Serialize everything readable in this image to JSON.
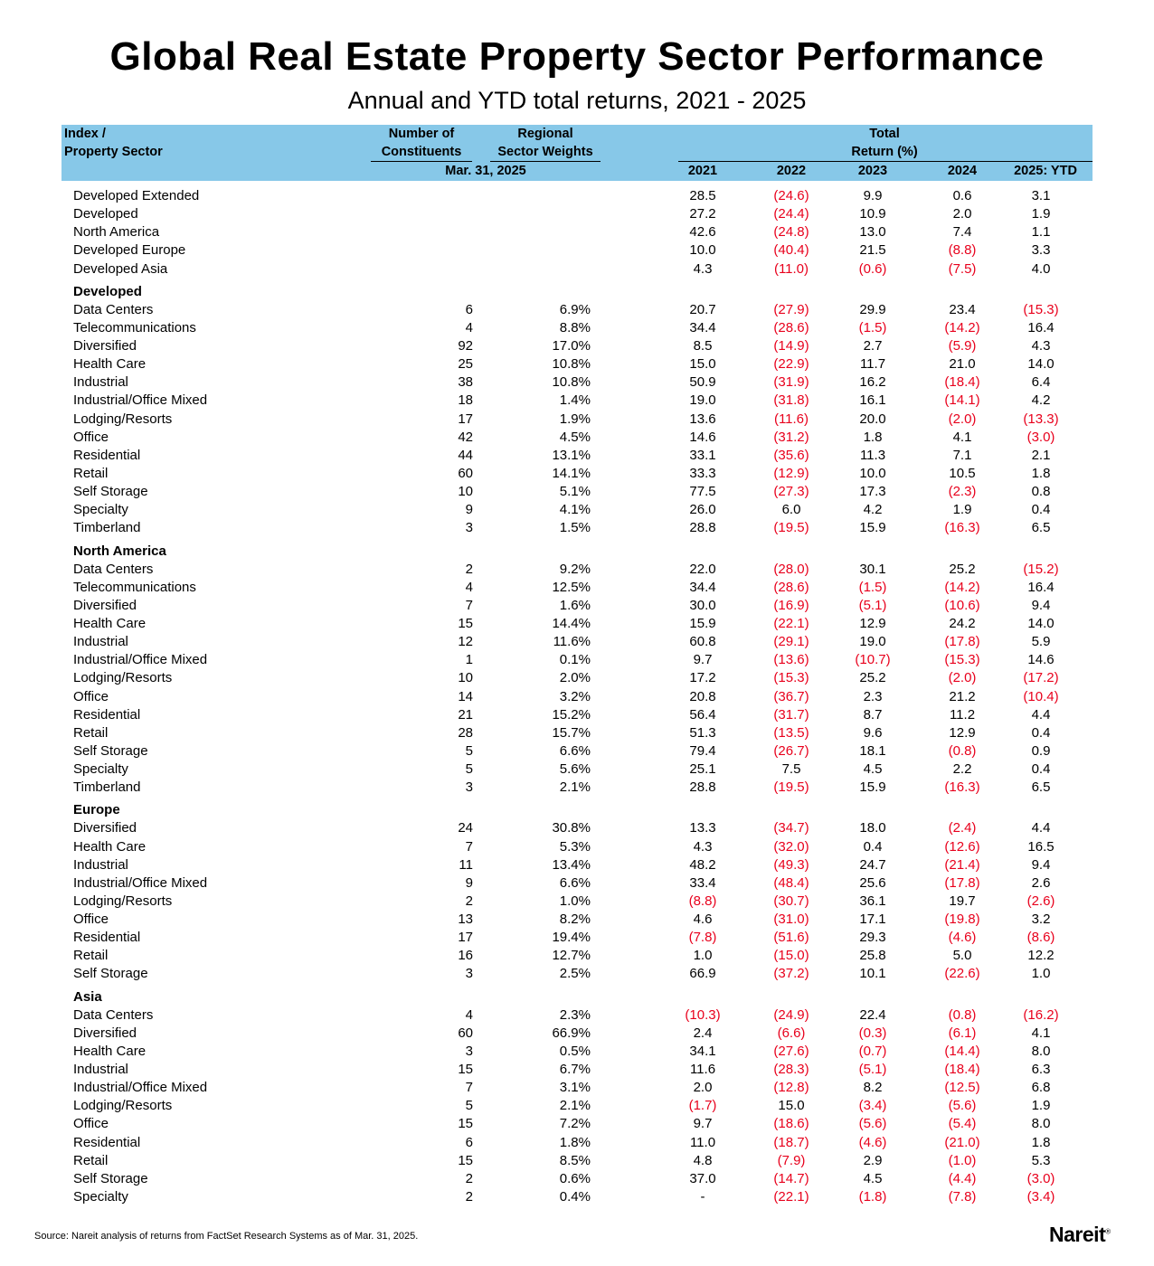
{
  "title": "Global Real Estate Property Sector Performance",
  "subtitle": "Annual and YTD total returns, 2021 - 2025",
  "header": {
    "col1_line1": "Index /",
    "col1_line2": "Property Sector",
    "col2_line1": "Number of",
    "col2_line2": "Constituents",
    "col3_line1": "Regional",
    "col3_line2": "Sector Weights",
    "date": "Mar. 31, 2025",
    "total_line1": "Total",
    "total_line2": "Return (%)",
    "years": [
      "2021",
      "2022",
      "2023",
      "2024",
      "2025: YTD"
    ]
  },
  "groups": [
    {
      "heading": "",
      "rows": [
        [
          "Developed Extended",
          "",
          "",
          "28.5",
          "(24.6)",
          "9.9",
          "0.6",
          "3.1"
        ],
        [
          "Developed",
          "",
          "",
          "27.2",
          "(24.4)",
          "10.9",
          "2.0",
          "1.9"
        ],
        [
          "North America",
          "",
          "",
          "42.6",
          "(24.8)",
          "13.0",
          "7.4",
          "1.1"
        ],
        [
          "Developed Europe",
          "",
          "",
          "10.0",
          "(40.4)",
          "21.5",
          "(8.8)",
          "3.3"
        ],
        [
          "Developed Asia",
          "",
          "",
          "4.3",
          "(11.0)",
          "(0.6)",
          "(7.5)",
          "4.0"
        ]
      ]
    },
    {
      "heading": "Developed",
      "rows": [
        [
          "Data Centers",
          "6",
          "6.9%",
          "20.7",
          "(27.9)",
          "29.9",
          "23.4",
          "(15.3)"
        ],
        [
          "Telecommunications",
          "4",
          "8.8%",
          "34.4",
          "(28.6)",
          "(1.5)",
          "(14.2)",
          "16.4"
        ],
        [
          "Diversified",
          "92",
          "17.0%",
          "8.5",
          "(14.9)",
          "2.7",
          "(5.9)",
          "4.3"
        ],
        [
          "Health Care",
          "25",
          "10.8%",
          "15.0",
          "(22.9)",
          "11.7",
          "21.0",
          "14.0"
        ],
        [
          "Industrial",
          "38",
          "10.8%",
          "50.9",
          "(31.9)",
          "16.2",
          "(18.4)",
          "6.4"
        ],
        [
          "Industrial/Office Mixed",
          "18",
          "1.4%",
          "19.0",
          "(31.8)",
          "16.1",
          "(14.1)",
          "4.2"
        ],
        [
          "Lodging/Resorts",
          "17",
          "1.9%",
          "13.6",
          "(11.6)",
          "20.0",
          "(2.0)",
          "(13.3)"
        ],
        [
          "Office",
          "42",
          "4.5%",
          "14.6",
          "(31.2)",
          "1.8",
          "4.1",
          "(3.0)"
        ],
        [
          "Residential",
          "44",
          "13.1%",
          "33.1",
          "(35.6)",
          "11.3",
          "7.1",
          "2.1"
        ],
        [
          "Retail",
          "60",
          "14.1%",
          "33.3",
          "(12.9)",
          "10.0",
          "10.5",
          "1.8"
        ],
        [
          "Self Storage",
          "10",
          "5.1%",
          "77.5",
          "(27.3)",
          "17.3",
          "(2.3)",
          "0.8"
        ],
        [
          "Specialty",
          "9",
          "4.1%",
          "26.0",
          "6.0",
          "4.2",
          "1.9",
          "0.4"
        ],
        [
          "Timberland",
          "3",
          "1.5%",
          "28.8",
          "(19.5)",
          "15.9",
          "(16.3)",
          "6.5"
        ]
      ]
    },
    {
      "heading": "North America",
      "rows": [
        [
          "Data Centers",
          "2",
          "9.2%",
          "22.0",
          "(28.0)",
          "30.1",
          "25.2",
          "(15.2)"
        ],
        [
          "Telecommunications",
          "4",
          "12.5%",
          "34.4",
          "(28.6)",
          "(1.5)",
          "(14.2)",
          "16.4"
        ],
        [
          "Diversified",
          "7",
          "1.6%",
          "30.0",
          "(16.9)",
          "(5.1)",
          "(10.6)",
          "9.4"
        ],
        [
          "Health Care",
          "15",
          "14.4%",
          "15.9",
          "(22.1)",
          "12.9",
          "24.2",
          "14.0"
        ],
        [
          "Industrial",
          "12",
          "11.6%",
          "60.8",
          "(29.1)",
          "19.0",
          "(17.8)",
          "5.9"
        ],
        [
          "Industrial/Office Mixed",
          "1",
          "0.1%",
          "9.7",
          "(13.6)",
          "(10.7)",
          "(15.3)",
          "14.6"
        ],
        [
          "Lodging/Resorts",
          "10",
          "2.0%",
          "17.2",
          "(15.3)",
          "25.2",
          "(2.0)",
          "(17.2)"
        ],
        [
          "Office",
          "14",
          "3.2%",
          "20.8",
          "(36.7)",
          "2.3",
          "21.2",
          "(10.4)"
        ],
        [
          "Residential",
          "21",
          "15.2%",
          "56.4",
          "(31.7)",
          "8.7",
          "11.2",
          "4.4"
        ],
        [
          "Retail",
          "28",
          "15.7%",
          "51.3",
          "(13.5)",
          "9.6",
          "12.9",
          "0.4"
        ],
        [
          "Self Storage",
          "5",
          "6.6%",
          "79.4",
          "(26.7)",
          "18.1",
          "(0.8)",
          "0.9"
        ],
        [
          "Specialty",
          "5",
          "5.6%",
          "25.1",
          "7.5",
          "4.5",
          "2.2",
          "0.4"
        ],
        [
          "Timberland",
          "3",
          "2.1%",
          "28.8",
          "(19.5)",
          "15.9",
          "(16.3)",
          "6.5"
        ]
      ]
    },
    {
      "heading": "Europe",
      "rows": [
        [
          "Diversified",
          "24",
          "30.8%",
          "13.3",
          "(34.7)",
          "18.0",
          "(2.4)",
          "4.4"
        ],
        [
          "Health Care",
          "7",
          "5.3%",
          "4.3",
          "(32.0)",
          "0.4",
          "(12.6)",
          "16.5"
        ],
        [
          "Industrial",
          "11",
          "13.4%",
          "48.2",
          "(49.3)",
          "24.7",
          "(21.4)",
          "9.4"
        ],
        [
          "Industrial/Office Mixed",
          "9",
          "6.6%",
          "33.4",
          "(48.4)",
          "25.6",
          "(17.8)",
          "2.6"
        ],
        [
          "Lodging/Resorts",
          "2",
          "1.0%",
          "(8.8)",
          "(30.7)",
          "36.1",
          "19.7",
          "(2.6)"
        ],
        [
          "Office",
          "13",
          "8.2%",
          "4.6",
          "(31.0)",
          "17.1",
          "(19.8)",
          "3.2"
        ],
        [
          "Residential",
          "17",
          "19.4%",
          "(7.8)",
          "(51.6)",
          "29.3",
          "(4.6)",
          "(8.6)"
        ],
        [
          "Retail",
          "16",
          "12.7%",
          "1.0",
          "(15.0)",
          "25.8",
          "5.0",
          "12.2"
        ],
        [
          "Self Storage",
          "3",
          "2.5%",
          "66.9",
          "(37.2)",
          "10.1",
          "(22.6)",
          "1.0"
        ]
      ]
    },
    {
      "heading": "Asia",
      "rows": [
        [
          "Data Centers",
          "4",
          "2.3%",
          "(10.3)",
          "(24.9)",
          "22.4",
          "(0.8)",
          "(16.2)"
        ],
        [
          "Diversified",
          "60",
          "66.9%",
          "2.4",
          "(6.6)",
          "(0.3)",
          "(6.1)",
          "4.1"
        ],
        [
          "Health Care",
          "3",
          "0.5%",
          "34.1",
          "(27.6)",
          "(0.7)",
          "(14.4)",
          "8.0"
        ],
        [
          "Industrial",
          "15",
          "6.7%",
          "11.6",
          "(28.3)",
          "(5.1)",
          "(18.4)",
          "6.3"
        ],
        [
          "Industrial/Office Mixed",
          "7",
          "3.1%",
          "2.0",
          "(12.8)",
          "8.2",
          "(12.5)",
          "6.8"
        ],
        [
          "Lodging/Resorts",
          "5",
          "2.1%",
          "(1.7)",
          "15.0",
          "(3.4)",
          "(5.6)",
          "1.9"
        ],
        [
          "Office",
          "15",
          "7.2%",
          "9.7",
          "(18.6)",
          "(5.6)",
          "(5.4)",
          "8.0"
        ],
        [
          "Residential",
          "6",
          "1.8%",
          "11.0",
          "(18.7)",
          "(4.6)",
          "(21.0)",
          "1.8"
        ],
        [
          "Retail",
          "15",
          "8.5%",
          "4.8",
          "(7.9)",
          "2.9",
          "(1.0)",
          "5.3"
        ],
        [
          "Self Storage",
          "2",
          "0.6%",
          "37.0",
          "(14.7)",
          "4.5",
          "(4.4)",
          "(3.0)"
        ],
        [
          "Specialty",
          "2",
          "0.4%",
          "-",
          "(22.1)",
          "(1.8)",
          "(7.8)",
          "(3.4)"
        ]
      ]
    }
  ],
  "colors": {
    "header_band": "#87c8e8",
    "negative": "#e8001c"
  },
  "source": "Source: Nareit analysis of returns from FactSet Research Systems as of Mar. 31, 2025.",
  "logo": {
    "text": "Nareit",
    "mark": "®"
  }
}
